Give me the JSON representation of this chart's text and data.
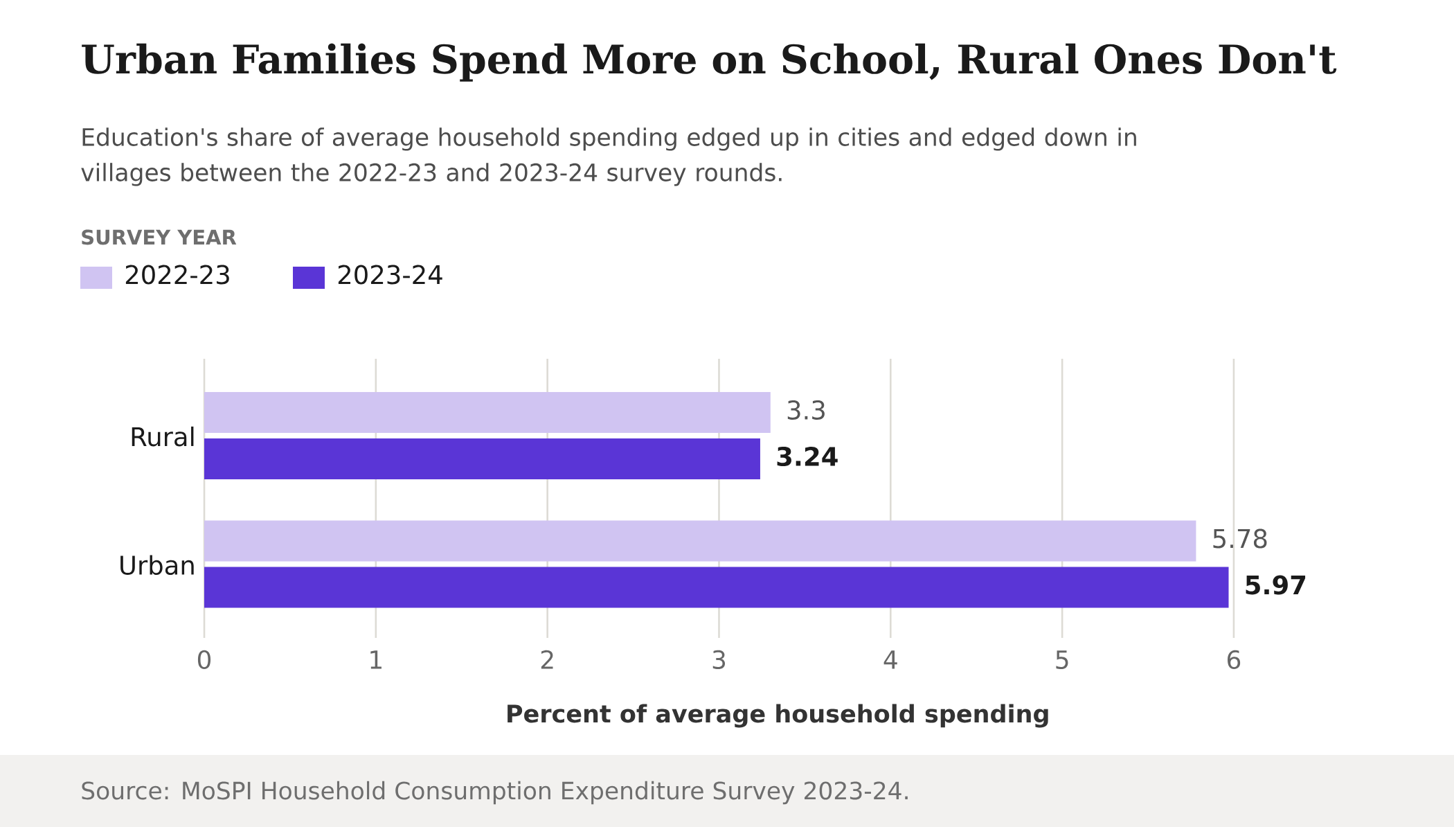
{
  "chart_data": {
    "type": "bar",
    "orientation": "horizontal",
    "title": "Urban Families Spend More on School, Rural Ones Don't",
    "subtitle": "Education's share of average household spending edged up in cities and edged down in villages between the 2022-23 and 2023-24 survey rounds.",
    "legend_title": "SURVEY YEAR",
    "legend": "top left",
    "xlabel": "Percent of average household spending",
    "categories": [
      "Rural",
      "Urban"
    ],
    "series": [
      {
        "name": "2022-23",
        "color": "#d0c4f2",
        "values": [
          3.3,
          5.78
        ]
      },
      {
        "name": "2023-24",
        "color": "#5a35d6",
        "values": [
          3.24,
          5.97
        ]
      }
    ],
    "xlim": [
      0,
      6
    ],
    "xticks": [
      0,
      1,
      2,
      3,
      4,
      5,
      6
    ],
    "grid": "x",
    "data_labels": true,
    "annotations": [
      "Source: MoSPI Household Consumption Expenditure Survey 2023-24."
    ]
  }
}
